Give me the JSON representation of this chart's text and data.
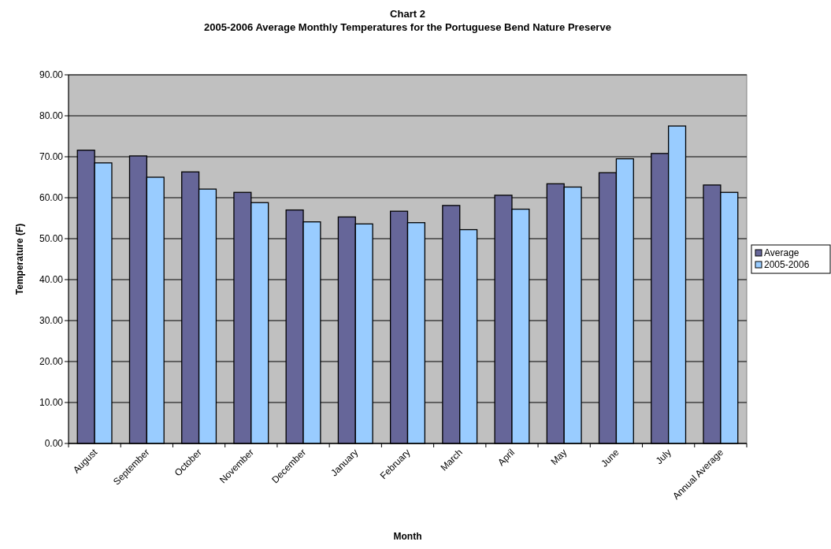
{
  "chart_data": {
    "type": "bar",
    "title": "Chart 2\n2005-2006 Average Monthly Temperatures for the Portuguese Bend Nature Preserve",
    "xlabel": "Month",
    "ylabel": "Temperature (F)",
    "categories": [
      "August",
      "September",
      "October",
      "November",
      "December",
      "January",
      "February",
      "March",
      "April",
      "May",
      "June",
      "July",
      "Annual Average"
    ],
    "series": [
      {
        "name": "Average",
        "color": "#666699",
        "values": [
          71.6,
          70.2,
          66.3,
          61.3,
          57.0,
          55.3,
          56.7,
          58.1,
          60.6,
          63.4,
          66.1,
          70.8,
          63.1
        ]
      },
      {
        "name": "2005-2006",
        "color": "#99ccff",
        "values": [
          68.5,
          65.0,
          62.1,
          58.8,
          54.1,
          53.6,
          53.9,
          52.2,
          57.2,
          62.6,
          69.5,
          77.5,
          61.3
        ]
      }
    ],
    "ylim": [
      0,
      90
    ],
    "yticks": [
      {
        "value": 0,
        "label": "0.00"
      },
      {
        "value": 10,
        "label": "10.00"
      },
      {
        "value": 20,
        "label": "20.00"
      },
      {
        "value": 30,
        "label": "30.00"
      },
      {
        "value": 40,
        "label": "40.00"
      },
      {
        "value": 50,
        "label": "50.00"
      },
      {
        "value": 60,
        "label": "60.00"
      },
      {
        "value": 70,
        "label": "70.00"
      },
      {
        "value": 80,
        "label": "80.00"
      },
      {
        "value": 90,
        "label": "90.00"
      }
    ],
    "grid": "y",
    "legend": "right"
  }
}
